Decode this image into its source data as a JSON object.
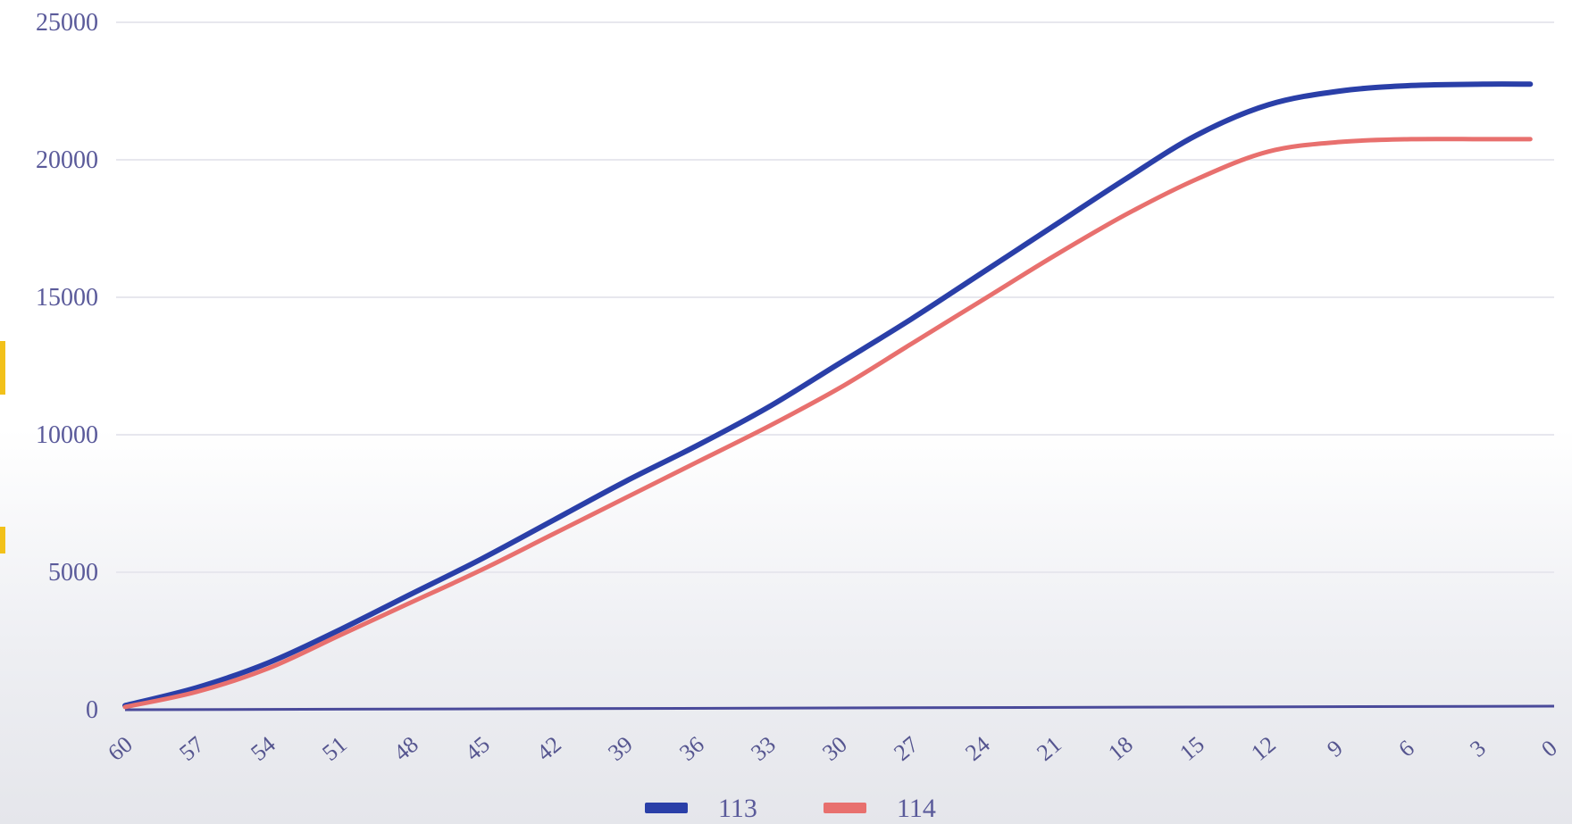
{
  "colors": {
    "series_113": "#2a3fa8",
    "series_114": "#e8706e",
    "axis": "#4a4a9a",
    "grid": "#e7e7ee",
    "tick_text": "#5a5a9a",
    "left_accent": "#f2c11a"
  },
  "chart_data": {
    "type": "line",
    "title": "",
    "xlabel": "",
    "ylabel": "",
    "x_reversed": true,
    "xlim": [
      60,
      0
    ],
    "ylim": [
      0,
      25000
    ],
    "grid": true,
    "legend_position": "bottom-center",
    "y_ticks": [
      "0",
      "5000",
      "10000",
      "15000",
      "20000",
      "25000"
    ],
    "x_ticks": [
      "60",
      "57",
      "54",
      "51",
      "48",
      "45",
      "42",
      "39",
      "36",
      "33",
      "30",
      "27",
      "24",
      "21",
      "18",
      "15",
      "12",
      "9",
      "6",
      "3",
      "0"
    ],
    "x": [
      60,
      57,
      54,
      51,
      48,
      45,
      42,
      39,
      36,
      33,
      30,
      27,
      24,
      21,
      18,
      15,
      12,
      9,
      6,
      3,
      1
    ],
    "series": [
      {
        "name": "113",
        "color": "#2a3fa8",
        "values": [
          150,
          800,
          1700,
          2900,
          4200,
          5500,
          6900,
          8300,
          9600,
          11000,
          12600,
          14200,
          15900,
          17600,
          19300,
          20900,
          22000,
          22500,
          22700,
          22750,
          22750
        ]
      },
      {
        "name": "114",
        "color": "#e8706e",
        "values": [
          100,
          650,
          1500,
          2700,
          3900,
          5100,
          6400,
          7700,
          9000,
          10300,
          11700,
          13300,
          14900,
          16500,
          18000,
          19300,
          20300,
          20650,
          20750,
          20750,
          20750
        ]
      }
    ]
  }
}
